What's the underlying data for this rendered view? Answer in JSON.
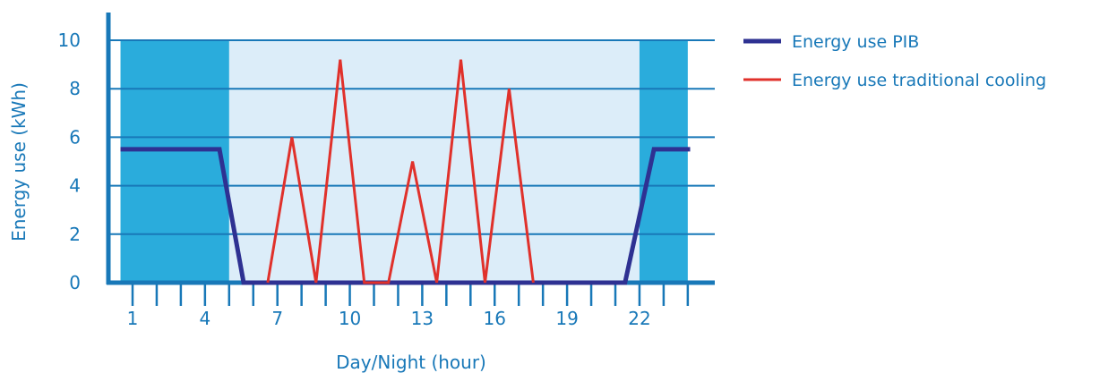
{
  "chart_data": {
    "type": "line",
    "title": "",
    "xlabel": "Day/Night (hour)",
    "ylabel": "Energy use (kWh)",
    "xlim": [
      0,
      24.5
    ],
    "ylim": [
      0,
      10
    ],
    "x_tick_values": [
      1,
      2,
      3,
      4,
      5,
      6,
      7,
      8,
      9,
      10,
      11,
      12,
      13,
      14,
      15,
      16,
      17,
      18,
      19,
      20,
      21,
      22,
      23,
      24
    ],
    "x_tick_labels": [
      "1",
      "4",
      "7",
      "10",
      "13",
      "16",
      "19",
      "22"
    ],
    "x_tick_label_values": [
      1,
      4,
      7,
      10,
      13,
      16,
      19,
      22
    ],
    "y_ticks": [
      0,
      2,
      4,
      6,
      8,
      10
    ],
    "grid": "horizontal",
    "legend_position": "right",
    "night_bands": [
      [
        0.5,
        5.0
      ],
      [
        22.0,
        24.0
      ]
    ],
    "day_band": [
      5.0,
      22.0
    ],
    "series": [
      {
        "name": "Energy use PIB",
        "color": "#2e3192",
        "x": [
          0.5,
          4.6,
          5.6,
          21.4,
          22.6,
          24.1
        ],
        "y": [
          5.5,
          5.5,
          0,
          0,
          5.5,
          5.5
        ]
      },
      {
        "name": "Energy use traditional cooling",
        "color": "#e0312b",
        "x": [
          6.6,
          7.6,
          8.6,
          9.6,
          10.6,
          11.6,
          12.6,
          13.6,
          14.6,
          15.6,
          16.6,
          17.6
        ],
        "y": [
          0,
          6,
          0,
          9.2,
          0,
          0,
          5,
          0,
          9.2,
          0,
          8,
          0
        ]
      }
    ]
  },
  "colors": {
    "axis": "#1878b8",
    "grid": "#1878b8",
    "night_fill": "#2aacdc",
    "day_fill": "#dcedf9",
    "text": "#1878b8"
  }
}
